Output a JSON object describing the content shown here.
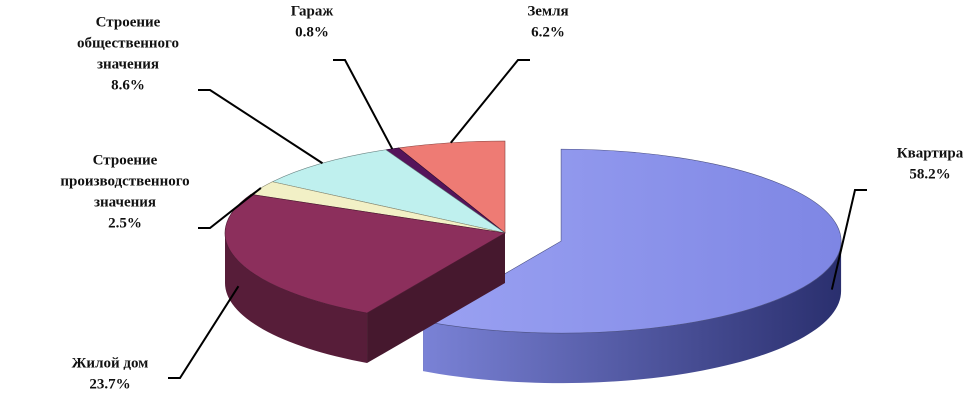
{
  "chart_data": {
    "type": "pie",
    "title": "",
    "legend": "none",
    "slices": [
      {
        "label": "Квартира",
        "pct_text": "58.2%",
        "value": 58.2,
        "color": "#8b93ec",
        "exploded": true
      },
      {
        "label": "Жилой дом",
        "pct_text": "23.7%",
        "value": 23.7,
        "color": "#8c2f5c",
        "exploded": false
      },
      {
        "label": "Строение производственного значения",
        "label_lines": [
          "Строение",
          "производственного",
          "значения"
        ],
        "pct_text": "2.5%",
        "value": 2.5,
        "color": "#f2f0c6",
        "exploded": false
      },
      {
        "label": "Строение общественного значения",
        "label_lines": [
          "Строение",
          "общественного",
          "значения"
        ],
        "pct_text": "8.6%",
        "value": 8.6,
        "color": "#bff0ee",
        "exploded": false
      },
      {
        "label": "Гараж",
        "pct_text": "0.8%",
        "value": 0.8,
        "color": "#55145a",
        "exploded": false
      },
      {
        "label": "Земля",
        "pct_text": "6.2%",
        "value": 6.2,
        "color": "#ee7b74",
        "exploded": false
      }
    ]
  }
}
